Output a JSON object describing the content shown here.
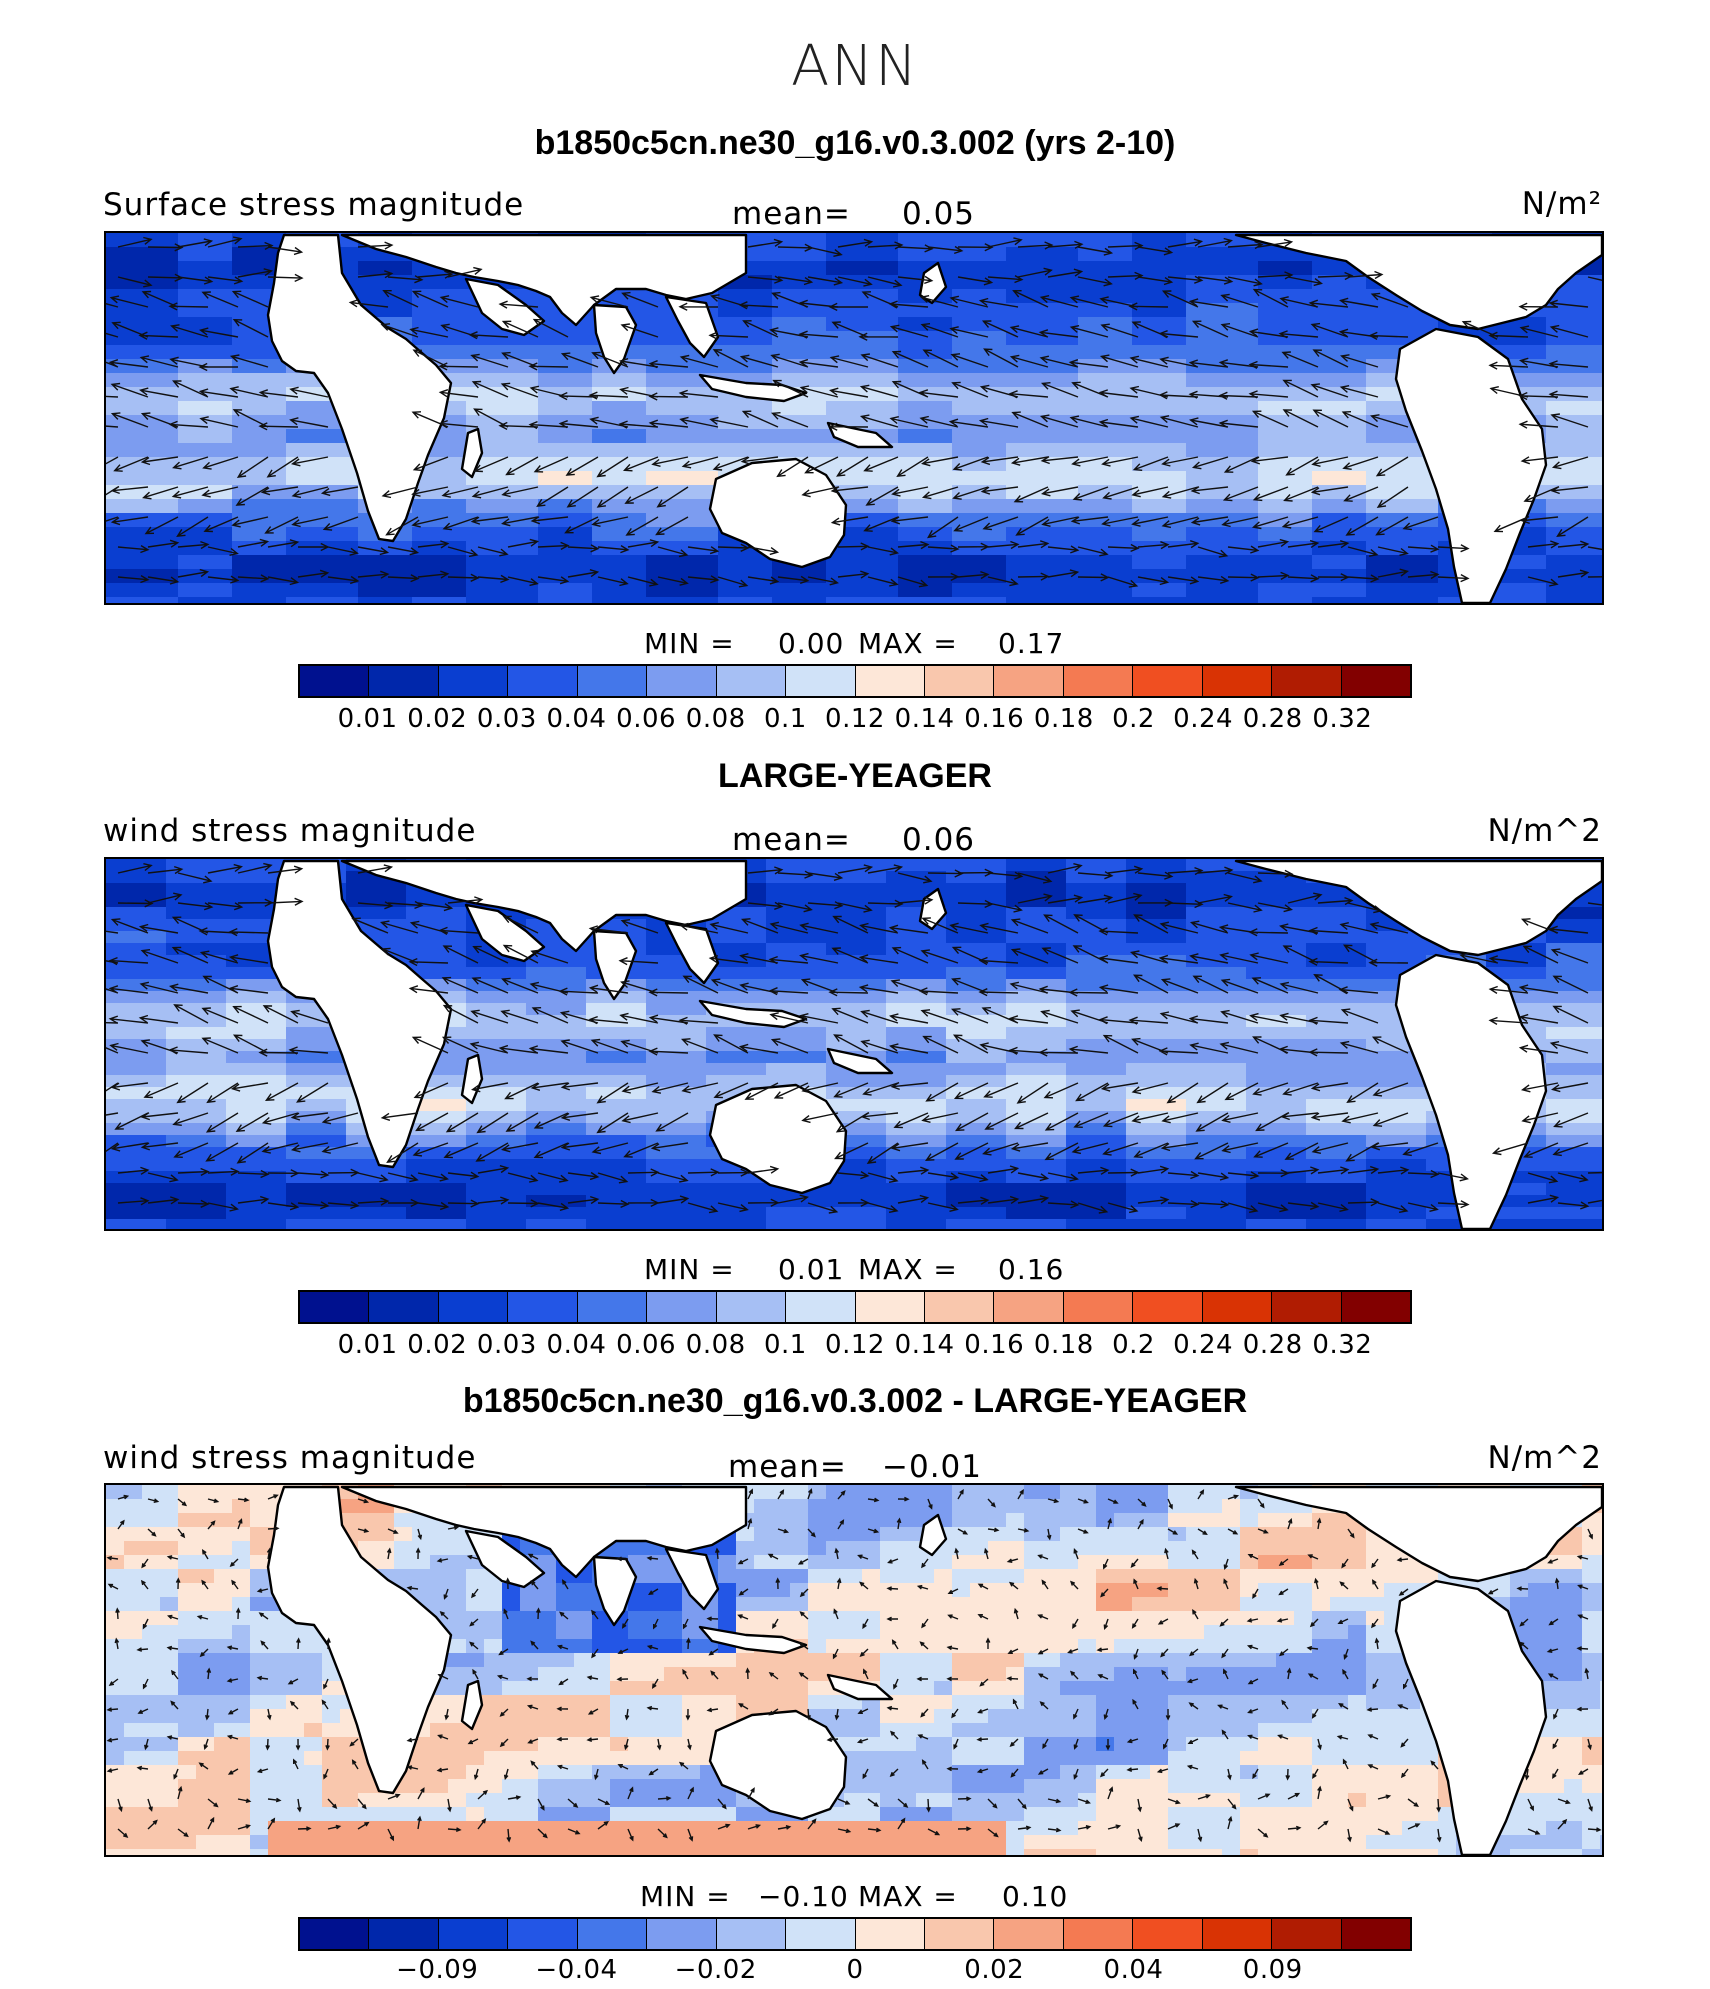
{
  "header": {
    "season": "ANN"
  },
  "panels": [
    {
      "title": "b1850c5cn.ne30_g16.v0.3.002 (yrs 2-10)",
      "left_label": "Surface stress magnitude",
      "mean_label": "mean=",
      "mean_value": "0.05",
      "units": "N/m²",
      "min_label": "MIN =",
      "min_value": "0.00",
      "max_label": "MAX =",
      "max_value": "0.17",
      "scale": "magnitude"
    },
    {
      "title": "LARGE-YEAGER",
      "left_label": "wind stress magnitude",
      "mean_label": "mean=",
      "mean_value": "0.06",
      "units": "N/m^2",
      "min_label": "MIN =",
      "min_value": "0.01",
      "max_label": "MAX =",
      "max_value": "0.16",
      "scale": "magnitude"
    },
    {
      "title": "b1850c5cn.ne30_g16.v0.3.002 - LARGE-YEAGER",
      "left_label": "wind stress magnitude",
      "mean_label": "mean=",
      "mean_value": "−0.01",
      "units": "N/m^2",
      "min_label": "MIN =",
      "min_value": "−0.10",
      "max_label": "MAX =",
      "max_value": "0.10",
      "scale": "difference"
    }
  ],
  "colorbars": {
    "magnitude": {
      "colors": [
        "#00118f",
        "#0027ab",
        "#0a3ed0",
        "#2356e6",
        "#4477ea",
        "#7c9cf0",
        "#a6bff4",
        "#d0e2f8",
        "#fde7d8",
        "#f9c7ad",
        "#f6a382",
        "#f47a52",
        "#f04f21",
        "#d93304",
        "#b01c02",
        "#820000"
      ],
      "labels": [
        "0.01",
        "0.02",
        "0.03",
        "0.04",
        "0.06",
        "0.08",
        "0.1",
        "0.12",
        "0.14",
        "0.16",
        "0.18",
        "0.2",
        "0.24",
        "0.28",
        "0.32"
      ]
    },
    "difference": {
      "colors": [
        "#00118f",
        "#0027ab",
        "#0a3ed0",
        "#2356e6",
        "#4477ea",
        "#7c9cf0",
        "#a6bff4",
        "#d0e2f8",
        "#fde7d8",
        "#f9c7ad",
        "#f6a382",
        "#f47a52",
        "#f04f21",
        "#d93304",
        "#b01c02",
        "#820000"
      ],
      "labels": [
        "−0.09",
        "−0.04",
        "−0.02",
        "0",
        "0.02",
        "0.04",
        "0.09"
      ]
    }
  },
  "map_colors": {
    "land": "#ffffff",
    "coast": "#000000",
    "arrow": "#111111"
  }
}
